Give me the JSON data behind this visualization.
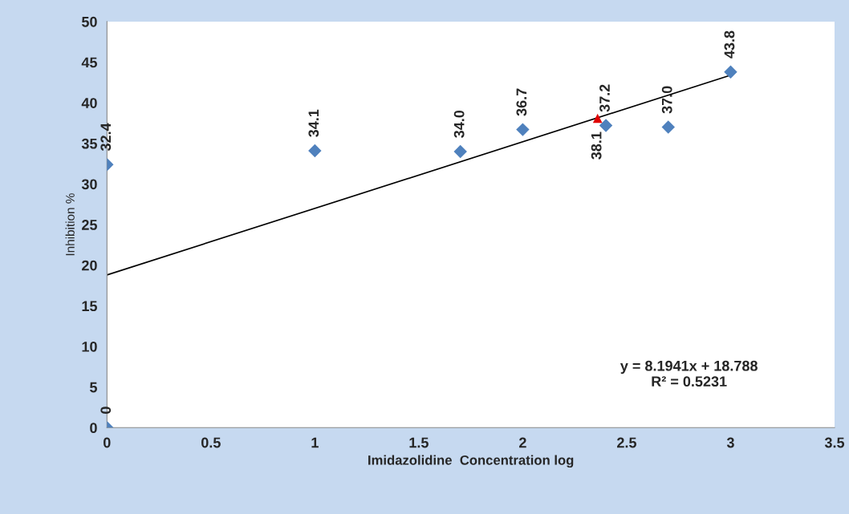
{
  "chart_data": {
    "type": "scatter",
    "xlabel": "Imidazolidine  Concentration log",
    "ylabel": "Inhibition %",
    "xlim": [
      0,
      3.5
    ],
    "xticks": [
      0,
      0.5,
      1,
      1.5,
      2,
      2.5,
      3,
      3.5
    ],
    "ylim": [
      0,
      50
    ],
    "yticks": [
      0,
      5,
      10,
      15,
      20,
      25,
      30,
      35,
      40,
      45,
      50
    ],
    "grid": false,
    "legend": false,
    "series": [
      {
        "marker": "diamond",
        "color": "#4f81bd",
        "x": [
          0,
          0,
          1,
          1.7,
          2,
          2.4,
          2.7,
          3
        ],
        "values": [
          0,
          32.4,
          34.1,
          34.0,
          36.7,
          37.2,
          37.0,
          43.8
        ],
        "value_labels": [
          "0",
          "32.4",
          "34.1",
          "34.0",
          "36.7",
          "37.2",
          "37.0",
          "43.8"
        ]
      },
      {
        "marker": "triangle",
        "color": "#e00000",
        "x": [
          2.36
        ],
        "values": [
          38.1
        ],
        "value_labels": [
          "38.1"
        ]
      },
      {
        "type": "line",
        "color": "#000000",
        "line_style": "solid",
        "marker": "none",
        "x": [
          0,
          3
        ],
        "values": [
          18.8,
          43.4
        ]
      }
    ],
    "annotations": [
      "y = 8.1941x + 18.788\nR² = 0.5231"
    ]
  }
}
